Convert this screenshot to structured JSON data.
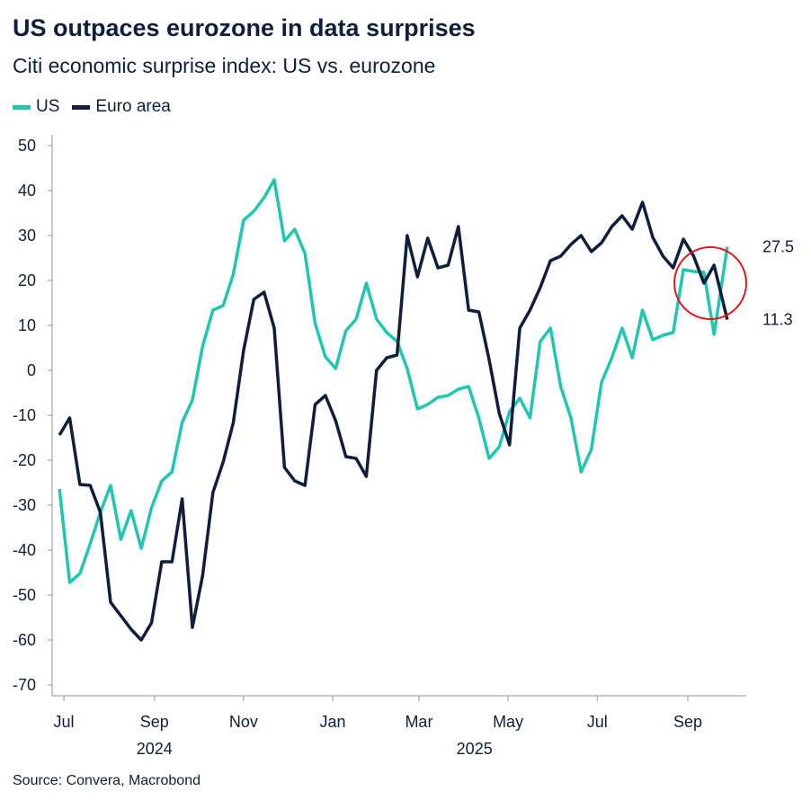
{
  "title": "US outpaces eurozone in data surprises",
  "subtitle": "Citi economic surprise index: US vs. eurozone",
  "source": "Source: Convera, Macrobond",
  "colors": {
    "US": "#1fc7b3",
    "Euro area": "#0d1f3c",
    "highlight_circle": "#e8151b"
  },
  "chart_data": {
    "type": "line",
    "title": "US outpaces eurozone in data surprises",
    "subtitle": "Citi economic surprise index: US vs. eurozone",
    "xlabel": "",
    "ylabel": "",
    "ylim": [
      -70,
      50
    ],
    "xlim": [
      "2024-06-23",
      "2025-10-11"
    ],
    "grid": false,
    "legend": "top-left",
    "yticks": [
      50,
      40,
      30,
      20,
      10,
      0,
      -10,
      -20,
      -30,
      -40,
      -50,
      -60,
      -70
    ],
    "xticks": [
      {
        "date": "2024-07-01",
        "label": "Jul"
      },
      {
        "date": "2024-09-01",
        "label": "Sep"
      },
      {
        "date": "2024-11-01",
        "label": "Nov"
      },
      {
        "date": "2025-01-01",
        "label": "Jan"
      },
      {
        "date": "2025-03-01",
        "label": "Mar"
      },
      {
        "date": "2025-05-01",
        "label": "May"
      },
      {
        "date": "2025-07-01",
        "label": "Jul"
      },
      {
        "date": "2025-09-01",
        "label": "Sep"
      }
    ],
    "year_labels": [
      {
        "label": "2024",
        "date": "2024-09-01"
      },
      {
        "label": "2025",
        "date": "2025-04-08"
      }
    ],
    "x": [
      "2024-06-28",
      "2024-07-05",
      "2024-07-12",
      "2024-07-19",
      "2024-07-26",
      "2024-08-02",
      "2024-08-09",
      "2024-08-16",
      "2024-08-23",
      "2024-08-30",
      "2024-09-06",
      "2024-09-13",
      "2024-09-20",
      "2024-09-27",
      "2024-10-04",
      "2024-10-11",
      "2024-10-18",
      "2024-10-25",
      "2024-11-01",
      "2024-11-08",
      "2024-11-15",
      "2024-11-22",
      "2024-11-29",
      "2024-12-06",
      "2024-12-13",
      "2024-12-20",
      "2024-12-27",
      "2025-01-03",
      "2025-01-10",
      "2025-01-17",
      "2025-01-24",
      "2025-01-31",
      "2025-02-07",
      "2025-02-14",
      "2025-02-21",
      "2025-02-28",
      "2025-03-07",
      "2025-03-14",
      "2025-03-21",
      "2025-03-28",
      "2025-04-04",
      "2025-04-11",
      "2025-04-18",
      "2025-04-25",
      "2025-05-02",
      "2025-05-09",
      "2025-05-16",
      "2025-05-23",
      "2025-05-30",
      "2025-06-06",
      "2025-06-13",
      "2025-06-20",
      "2025-06-27",
      "2025-07-04",
      "2025-07-11",
      "2025-07-18",
      "2025-07-25",
      "2025-08-01",
      "2025-08-08",
      "2025-08-15",
      "2025-08-22",
      "2025-08-29",
      "2025-09-05",
      "2025-09-12",
      "2025-09-19",
      "2025-09-28"
    ],
    "series": [
      {
        "name": "US",
        "last_label": "27.5",
        "values": [
          -26.4,
          -47.2,
          -45.2,
          -38.6,
          -31.6,
          -25.6,
          -37.6,
          -31.2,
          -39.6,
          -30.6,
          -24.6,
          -22.6,
          -11.6,
          -6.6,
          5.4,
          13.4,
          14.4,
          21.4,
          33.4,
          35.4,
          38.4,
          42.4,
          28.8,
          31.4,
          26,
          10.4,
          3,
          0.4,
          8.8,
          11.4,
          19.4,
          11.4,
          8.4,
          6.4,
          0.4,
          -8.6,
          -7.6,
          -6,
          -5.6,
          -4.2,
          -3.6,
          -10.6,
          -19.6,
          -17,
          -9.2,
          -6.2,
          -10.6,
          6.4,
          9.4,
          -3.6,
          -10.6,
          -22.6,
          -17.6,
          -2.6,
          2.8,
          9.4,
          2.8,
          13.4,
          6.8,
          7.8,
          8.4,
          22.4,
          22,
          21.8,
          8,
          27.5
        ]
      },
      {
        "name": "Euro area",
        "last_label": "11.3",
        "values": [
          -14.4,
          -10.6,
          -25.4,
          -25.6,
          -31.6,
          -51.6,
          -54.6,
          -57.6,
          -60,
          -56.2,
          -42.6,
          -42.6,
          -28.6,
          -57.2,
          -45.6,
          -27.2,
          -20.4,
          -11.6,
          4.4,
          15.8,
          17.4,
          9.4,
          -21.6,
          -24.6,
          -25.6,
          -7.6,
          -5.6,
          -11.2,
          -19.2,
          -19.6,
          -23.6,
          0,
          2.8,
          3.4,
          30,
          20.8,
          29.4,
          22.8,
          23.4,
          32,
          13.4,
          13,
          2.4,
          -9.6,
          -16.6,
          9.4,
          13.4,
          18.4,
          24.4,
          25.4,
          28,
          30,
          26.4,
          28.4,
          32,
          34.4,
          31.4,
          37.4,
          29.6,
          25.4,
          22.8,
          29.2,
          25.4,
          19.4,
          23.4,
          11.3
        ]
      }
    ]
  }
}
